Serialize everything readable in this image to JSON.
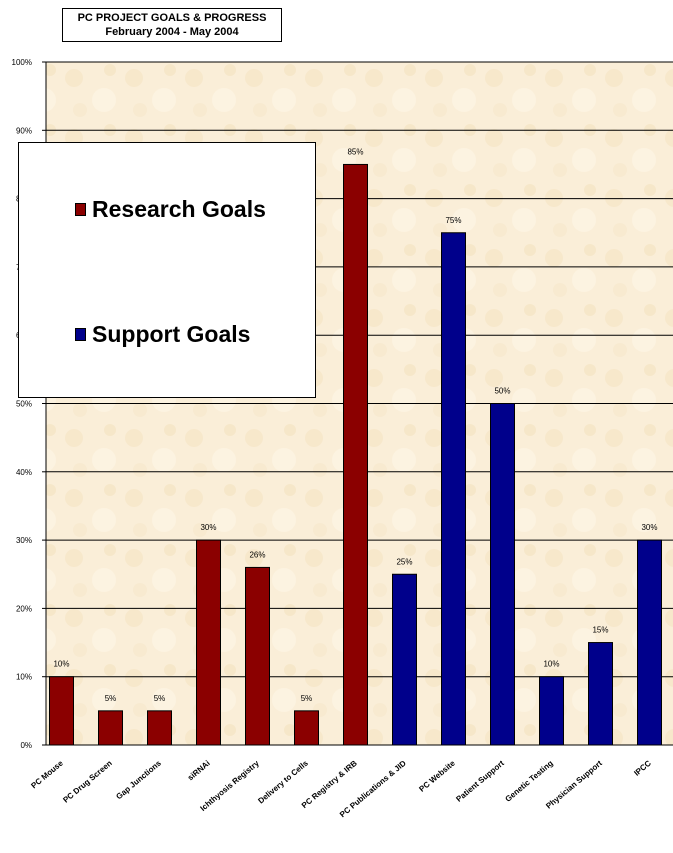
{
  "chart_data": {
    "type": "bar",
    "title": "PC PROJECT GOALS & PROGRESS",
    "subtitle": "February 2004 - May 2004",
    "xlabel": "",
    "ylabel": "",
    "ylim": [
      0,
      1
    ],
    "yticks": [
      "0%",
      "10%",
      "20%",
      "30%",
      "40%",
      "50%",
      "60%",
      "70%",
      "80%",
      "90%",
      "100%"
    ],
    "grid": true,
    "legend_position": "left",
    "categories": [
      "PC Mouse",
      "PC Drug Screen",
      "Gap Junctions",
      "siRNAi",
      "Ichthyosis Registry",
      "Delivery to Cells",
      "PC Registry & IRB",
      "PC Publications & JID",
      "PC Website",
      "Patient Support",
      "Genetic Testing",
      "Physician Support",
      "IPCC"
    ],
    "values": [
      0.1,
      0.05,
      0.05,
      0.3,
      0.26,
      0.05,
      0.85,
      0.25,
      0.75,
      0.5,
      0.1,
      0.15,
      0.3
    ],
    "value_labels": [
      "10%",
      "5%",
      "5%",
      "30%",
      "26%",
      "5%",
      "85%",
      "25%",
      "75%",
      "50%",
      "10%",
      "15%",
      "30%"
    ],
    "groups": [
      "research",
      "research",
      "research",
      "research",
      "research",
      "research",
      "research",
      "support",
      "support",
      "support",
      "support",
      "support",
      "support"
    ],
    "series": [
      {
        "name": "Research Goals",
        "key": "research",
        "color": "#8b0000"
      },
      {
        "name": "Support Goals",
        "key": "support",
        "color": "#00008b"
      }
    ],
    "plot_background": "#faeed8"
  }
}
